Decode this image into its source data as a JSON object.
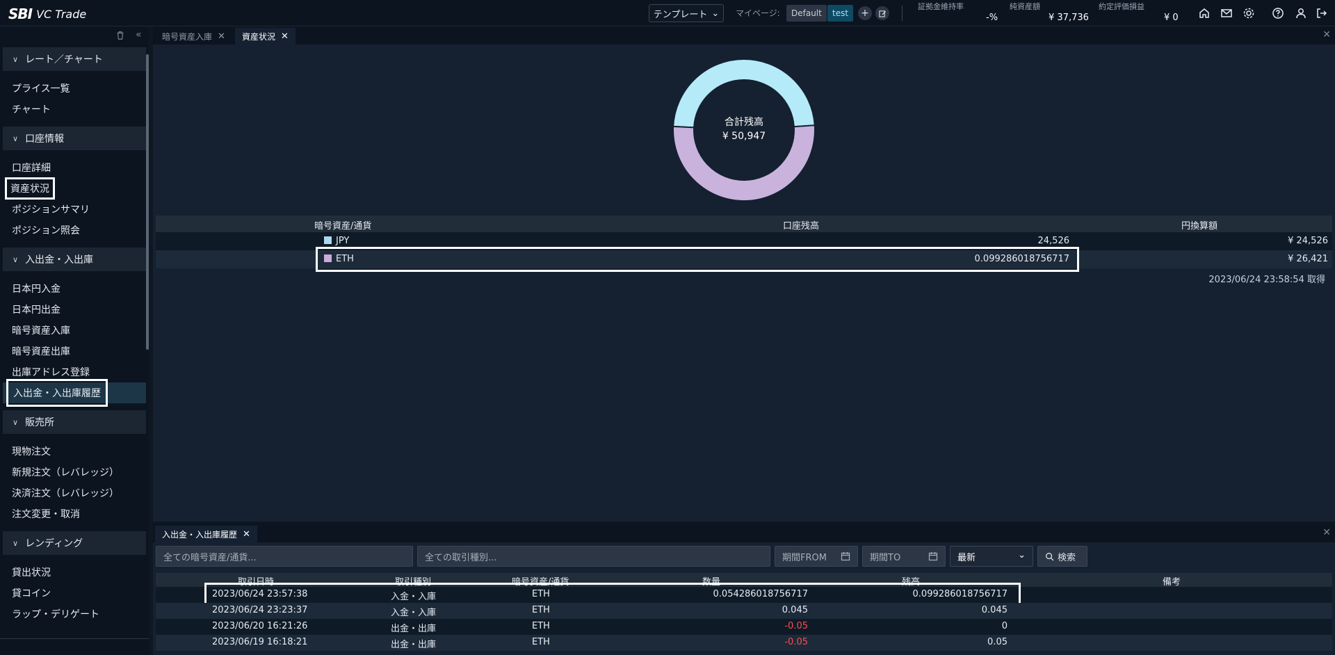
{
  "brand": {
    "sbi": "SBI",
    "name": "VC Trade"
  },
  "topbar": {
    "template_label": "テンプレート",
    "mypage_label": "マイページ:",
    "pages": [
      "Default",
      "test"
    ],
    "stats": [
      {
        "label": "証拠金維持率",
        "value": "-%"
      },
      {
        "label": "純資産額",
        "value": "¥ 37,736"
      },
      {
        "label": "約定評価損益",
        "value": "¥ 0"
      }
    ]
  },
  "sidebar": {
    "sections": [
      {
        "title": "レート／チャート",
        "items": [
          "プライス一覧",
          "チャート"
        ]
      },
      {
        "title": "口座情報",
        "items": [
          "口座詳細",
          "資産状況",
          "ポジションサマリ",
          "ポジション照会"
        ]
      },
      {
        "title": "入出金・入出庫",
        "items": [
          "日本円入金",
          "日本円出金",
          "暗号資産入庫",
          "暗号資産出庫",
          "出庫アドレス登録",
          "入出金・入出庫履歴"
        ]
      },
      {
        "title": "販売所",
        "items": [
          "現物注文",
          "新規注文（レバレッジ）",
          "決済注文（レバレッジ）",
          "注文変更・取消"
        ]
      },
      {
        "title": "レンディング",
        "items": [
          "貸出状況",
          "貸コイン",
          "ラップ・デリゲート"
        ]
      }
    ]
  },
  "main": {
    "tabs": [
      "暗号資産入庫",
      "資産状況"
    ],
    "donut": {
      "title": "合計残高",
      "total": "¥ 50,947"
    },
    "table": {
      "headers": [
        "暗号資産/通貨",
        "口座残高",
        "円換算額"
      ],
      "rows": [
        {
          "asset": "JPY",
          "balance": "24,526",
          "yen": "¥ 24,526",
          "color": "#a9d9ec"
        },
        {
          "asset": "ETH",
          "balance": "0.099286018756717",
          "yen": "¥ 26,421",
          "color": "#c8acdc"
        }
      ]
    },
    "fetched_at": "2023/06/24 23:58:54 取得"
  },
  "chart_data": {
    "type": "pie",
    "categories": [
      "JPY",
      "ETH"
    ],
    "values": [
      24526,
      26421
    ],
    "colors": [
      "#b5ebf9",
      "#c9b3dc"
    ],
    "title": "合計残高"
  },
  "history": {
    "tab": "入出金・入出庫履歴",
    "filters": {
      "asset_placeholder": "全ての暗号資産/通貨...",
      "type_placeholder": "全ての取引種別...",
      "from": "期間FROM",
      "to": "期間TO",
      "sort": "最新",
      "search": "検索"
    },
    "headers": [
      "取引日時",
      "取引種別",
      "暗号資産/通貨",
      "数量",
      "残高",
      "備考"
    ],
    "rows": [
      {
        "date": "2023/06/24 23:57:38",
        "type": "入金・入庫",
        "asset": "ETH",
        "qty": "0.054286018756717",
        "balance": "0.099286018756717",
        "neg": false
      },
      {
        "date": "2023/06/24 23:23:37",
        "type": "入金・入庫",
        "asset": "ETH",
        "qty": "0.045",
        "balance": "0.045",
        "neg": false
      },
      {
        "date": "2023/06/20 16:21:26",
        "type": "出金・出庫",
        "asset": "ETH",
        "qty": "-0.05",
        "balance": "0",
        "neg": true
      },
      {
        "date": "2023/06/19 16:18:21",
        "type": "出金・出庫",
        "asset": "ETH",
        "qty": "-0.05",
        "balance": "0.05",
        "neg": true
      }
    ]
  }
}
